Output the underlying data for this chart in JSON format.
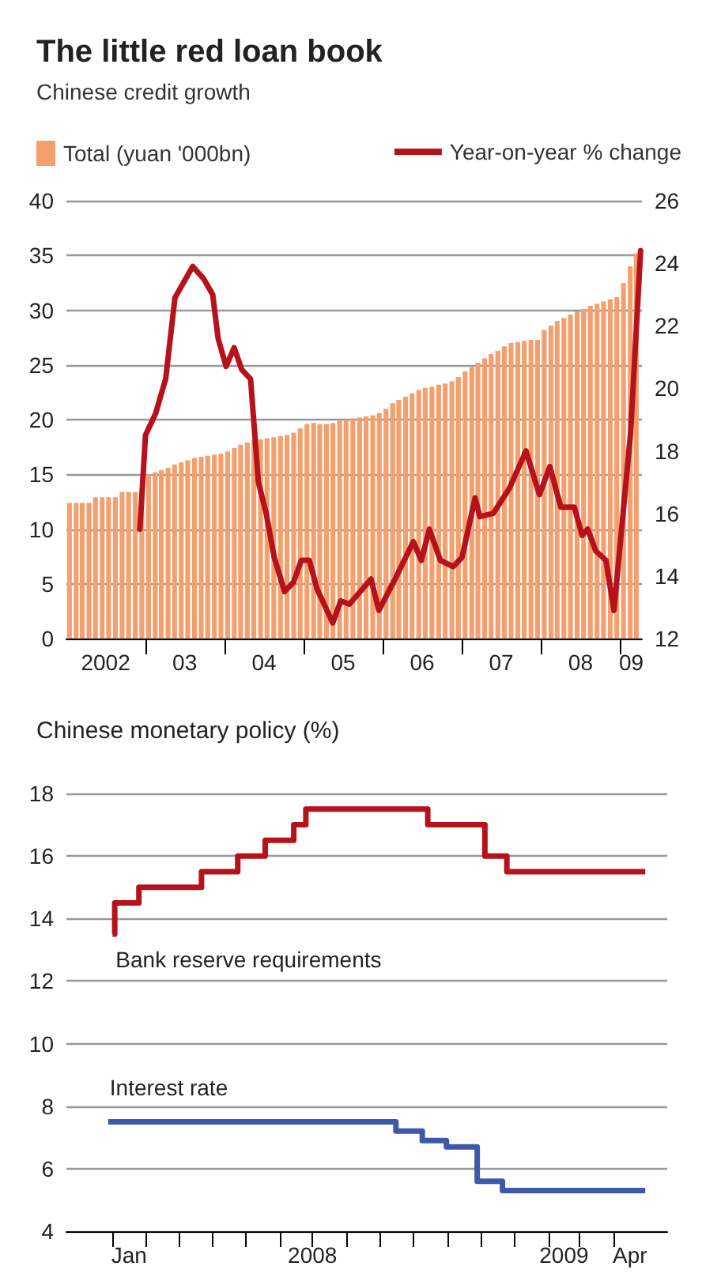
{
  "chart_data": [
    {
      "type": "bar",
      "title": "The little red loan book",
      "subtitle": "Chinese credit growth",
      "x": [
        "2002-01-15",
        "2002-02-15",
        "2002-03-15",
        "2002-04-15",
        "2002-05-15",
        "2002-06-15",
        "2002-07-15",
        "2002-08-15",
        "2002-09-15",
        "2002-10-15",
        "2002-11-15",
        "2002-12-15",
        "2003-01-15",
        "2003-02-15",
        "2003-03-15",
        "2003-04-15",
        "2003-05-15",
        "2003-06-15",
        "2003-07-15",
        "2003-08-15",
        "2003-09-15",
        "2003-10-15",
        "2003-11-15",
        "2003-12-15",
        "2004-01-15",
        "2004-02-15",
        "2004-03-15",
        "2004-04-15",
        "2004-05-15",
        "2004-06-15",
        "2004-07-15",
        "2004-08-15",
        "2004-09-15",
        "2004-10-15",
        "2004-11-15",
        "2004-12-15",
        "2005-01-15",
        "2005-02-15",
        "2005-03-15",
        "2005-04-15",
        "2005-05-15",
        "2005-06-15",
        "2005-07-15",
        "2005-08-15",
        "2005-09-15",
        "2005-10-15",
        "2005-11-15",
        "2005-12-15",
        "2006-01-15",
        "2006-02-15",
        "2006-03-15",
        "2006-04-15",
        "2006-05-15",
        "2006-06-15",
        "2006-07-15",
        "2006-08-15",
        "2006-09-15",
        "2006-10-15",
        "2006-11-15",
        "2006-12-15",
        "2007-01-15",
        "2007-02-15",
        "2007-03-15",
        "2007-04-15",
        "2007-05-15",
        "2007-06-15",
        "2007-07-15",
        "2007-08-15",
        "2007-09-15",
        "2007-10-15",
        "2007-11-15",
        "2007-12-15",
        "2008-01-15",
        "2008-02-15",
        "2008-03-15",
        "2008-04-15",
        "2008-05-15",
        "2008-06-15",
        "2008-07-15",
        "2008-08-15",
        "2008-09-15",
        "2008-10-15",
        "2008-11-15",
        "2008-12-15",
        "2009-01-15",
        "2009-02-15",
        "2009-03-15"
      ],
      "series": [
        {
          "name": "Total (yuan '000bn)",
          "color": "#f4a06e",
          "values": [
            12.4,
            12.4,
            12.4,
            12.4,
            12.9,
            12.9,
            12.9,
            12.9,
            13.4,
            13.4,
            13.4,
            13.4,
            15.0,
            15.2,
            15.4,
            15.6,
            15.9,
            16.1,
            16.3,
            16.5,
            16.6,
            16.7,
            16.8,
            16.9,
            17.1,
            17.4,
            17.7,
            17.9,
            18.1,
            18.2,
            18.3,
            18.4,
            18.5,
            18.6,
            18.8,
            19.2,
            19.6,
            19.7,
            19.6,
            19.6,
            19.7,
            19.9,
            20.0,
            20.1,
            20.2,
            20.3,
            20.4,
            20.6,
            21.0,
            21.5,
            21.8,
            22.1,
            22.4,
            22.7,
            22.9,
            23.0,
            23.2,
            23.3,
            23.5,
            23.9,
            24.4,
            24.8,
            25.2,
            25.6,
            26.0,
            26.3,
            26.7,
            27.0,
            27.1,
            27.2,
            27.3,
            27.3,
            28.2,
            28.6,
            29.0,
            29.3,
            29.6,
            29.9,
            30.1,
            30.4,
            30.6,
            30.8,
            31.0,
            31.2,
            32.5,
            34.0,
            35.2
          ]
        },
        {
          "name": "Year-on-year % change",
          "type": "line",
          "axis": "y2",
          "color": "#b5121b",
          "x": [
            "2002-12-06",
            "2003-01-01",
            "2003-02-17",
            "2003-04-04",
            "2003-05-17",
            "2003-08-07",
            "2003-09-27",
            "2003-11-07",
            "2003-12-02",
            "2004-01-08",
            "2004-02-14",
            "2004-03-20",
            "2004-04-30",
            "2004-06-05",
            "2004-07-11",
            "2004-08-17",
            "2004-10-04",
            "2004-11-14",
            "2004-12-20",
            "2005-01-26",
            "2005-03-02",
            "2005-05-14",
            "2005-06-20",
            "2005-07-30",
            "2005-11-07",
            "2005-12-13",
            "2006-03-05",
            "2006-05-21",
            "2006-06-27",
            "2006-08-03",
            "2006-09-23",
            "2006-11-21",
            "2007-01-01",
            "2007-03-02",
            "2007-03-24",
            "2007-05-25",
            "2007-08-07",
            "2007-10-23",
            "2007-12-24",
            "2008-02-10",
            "2008-04-01",
            "2008-06-02",
            "2008-07-08",
            "2008-08-03",
            "2008-09-09",
            "2008-10-26",
            "2008-12-02",
            "2009-02-17",
            "2009-04-04"
          ],
          "values": [
            15.5,
            18.5,
            19.2,
            20.3,
            22.9,
            23.9,
            23.5,
            23.0,
            21.6,
            20.7,
            21.3,
            20.6,
            20.3,
            17.0,
            16.0,
            14.6,
            13.5,
            13.8,
            14.5,
            14.5,
            13.6,
            12.5,
            13.2,
            13.1,
            13.9,
            12.9,
            14.0,
            15.1,
            14.5,
            15.5,
            14.5,
            14.3,
            14.6,
            16.5,
            15.9,
            16.0,
            16.8,
            18.0,
            16.6,
            17.5,
            16.2,
            16.2,
            15.3,
            15.5,
            14.8,
            14.5,
            12.9,
            18.6,
            24.4
          ]
        }
      ],
      "xlim": [
        "2002-01-01",
        "2009-04-10"
      ],
      "xticks": [
        {
          "value": "2002-07-01",
          "label": "2002"
        },
        {
          "value": "2003-07-01",
          "label": "03"
        },
        {
          "value": "2004-07-01",
          "label": "04"
        },
        {
          "value": "2005-07-01",
          "label": "05"
        },
        {
          "value": "2006-07-01",
          "label": "06"
        },
        {
          "value": "2007-07-01",
          "label": "07"
        },
        {
          "value": "2008-07-01",
          "label": "08"
        },
        {
          "value": "2009-02-20",
          "label": "09"
        },
        {
          "value": "2003-01-01",
          "label": null
        },
        {
          "value": "2004-01-01",
          "label": null
        },
        {
          "value": "2005-01-01",
          "label": null
        },
        {
          "value": "2006-01-01",
          "label": null
        },
        {
          "value": "2007-01-01",
          "label": null
        },
        {
          "value": "2008-01-01",
          "label": null
        },
        {
          "value": "2009-01-01",
          "label": null
        }
      ],
      "ylim": [
        0,
        40
      ],
      "yticks": [
        0,
        5,
        10,
        15,
        20,
        25,
        30,
        35,
        40
      ],
      "y2lim": [
        12,
        26
      ],
      "y2ticks": [
        12,
        14,
        16,
        18,
        20,
        22,
        24,
        26
      ],
      "grid": "y",
      "legend": "top",
      "marker": "none"
    },
    {
      "type": "step",
      "title": "Chinese monetary policy (%)",
      "series": [
        {
          "name": "Bank reserve requirements",
          "color": "#b5121b",
          "x": [
            "2008-01-01",
            "2008-01-03",
            "2008-01-25",
            "2008-03-22",
            "2008-04-24",
            "2008-05-19",
            "2008-06-14",
            "2008-06-25",
            "2008-10-14",
            "2008-12-05",
            "2008-12-25",
            "2009-04-30"
          ],
          "values": [
            13.5,
            14.5,
            15.0,
            15.5,
            16.0,
            16.5,
            17.0,
            17.5,
            17.0,
            16.0,
            15.5,
            15.5
          ]
        },
        {
          "name": "Interest rate",
          "color": "#3c5aa8",
          "x": [
            "2007-12-28",
            "2008-09-15",
            "2008-10-09",
            "2008-10-31",
            "2008-11-28",
            "2008-12-21",
            "2009-04-30"
          ],
          "values": [
            7.5,
            7.2,
            6.9,
            6.7,
            5.6,
            5.3,
            5.3
          ]
        }
      ],
      "xlim": [
        "2007-11-20",
        "2009-05-20"
      ],
      "xticks": [
        {
          "value": "2008-01-16",
          "label": "Jan"
        },
        {
          "value": "2008-07-01",
          "label": "2008"
        },
        {
          "value": "2009-02-15",
          "label": "2009"
        },
        {
          "value": "2009-04-16",
          "label": "Apr"
        },
        {
          "value": "2008-01-01",
          "label": null
        },
        {
          "value": "2008-02-01",
          "label": null
        },
        {
          "value": "2008-03-01",
          "label": null
        },
        {
          "value": "2008-04-01",
          "label": null
        },
        {
          "value": "2008-05-01",
          "label": null
        },
        {
          "value": "2008-06-01",
          "label": null
        },
        {
          "value": "2008-07-01",
          "label": null
        },
        {
          "value": "2008-08-01",
          "label": null
        },
        {
          "value": "2008-09-01",
          "label": null
        },
        {
          "value": "2008-10-01",
          "label": null
        },
        {
          "value": "2008-11-01",
          "label": null
        },
        {
          "value": "2008-12-01",
          "label": null
        },
        {
          "value": "2009-01-01",
          "label": null
        },
        {
          "value": "2009-02-01",
          "label": null
        },
        {
          "value": "2009-03-01",
          "label": null
        },
        {
          "value": "2009-04-01",
          "label": null
        }
      ],
      "ylim": [
        4,
        18
      ],
      "yticks": [
        4,
        6,
        8,
        10,
        12,
        14,
        16,
        18
      ],
      "grid": "y",
      "marker": "none"
    }
  ]
}
